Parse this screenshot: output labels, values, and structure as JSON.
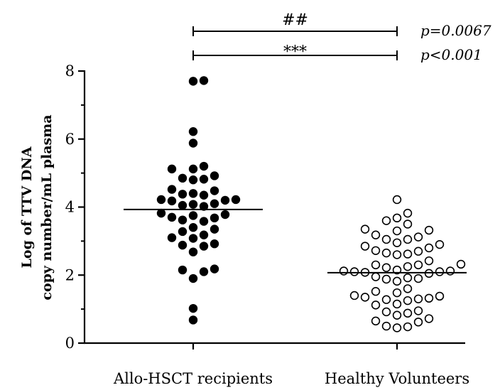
{
  "chart_data": {
    "type": "scatter",
    "ylabel": [
      "Log of TTV DNA",
      "copy number/mL plasma"
    ],
    "ylim": [
      0,
      8
    ],
    "yticks": [
      "0",
      "2",
      "4",
      "6",
      "8"
    ],
    "categories": [
      "Allo-HSCT recipients",
      "Healthy Volunteers"
    ],
    "series": [
      {
        "name": "Allo-HSCT recipients",
        "marker": "filled-circle",
        "median": 3.93,
        "values": [
          7.72,
          7.7,
          6.22,
          5.88,
          5.2,
          5.12,
          5.12,
          4.92,
          4.85,
          4.82,
          4.8,
          4.52,
          4.48,
          4.4,
          4.38,
          4.35,
          4.22,
          4.22,
          4.2,
          4.18,
          4.1,
          4.08,
          4.05,
          4.02,
          3.82,
          3.78,
          3.75,
          3.7,
          3.68,
          3.62,
          3.58,
          3.4,
          3.35,
          3.28,
          3.18,
          3.1,
          3.08,
          2.92,
          2.88,
          2.85,
          2.68,
          2.18,
          2.15,
          2.1,
          1.9,
          1.02,
          0.68
        ]
      },
      {
        "name": "Healthy Volunteers",
        "marker": "open-circle",
        "median": 2.07,
        "values": [
          4.22,
          3.82,
          3.68,
          3.6,
          3.5,
          3.35,
          3.32,
          3.3,
          3.18,
          3.12,
          3.05,
          3.05,
          2.95,
          2.9,
          2.85,
          2.8,
          2.72,
          2.7,
          2.65,
          2.62,
          2.6,
          2.42,
          2.32,
          2.3,
          2.3,
          2.25,
          2.22,
          2.15,
          2.12,
          2.12,
          2.1,
          2.1,
          2.08,
          2.05,
          1.95,
          1.92,
          1.9,
          1.88,
          1.82,
          1.6,
          1.52,
          1.48,
          1.4,
          1.38,
          1.35,
          1.32,
          1.3,
          1.28,
          1.25,
          1.15,
          1.12,
          0.95,
          0.92,
          0.88,
          0.82,
          0.72,
          0.65,
          0.62,
          0.5,
          0.48,
          0.45
        ]
      }
    ],
    "comparisons": [
      {
        "label": "##",
        "p_text": "p=0.0067"
      },
      {
        "label": "***",
        "p_text": "p<0.001"
      }
    ]
  }
}
